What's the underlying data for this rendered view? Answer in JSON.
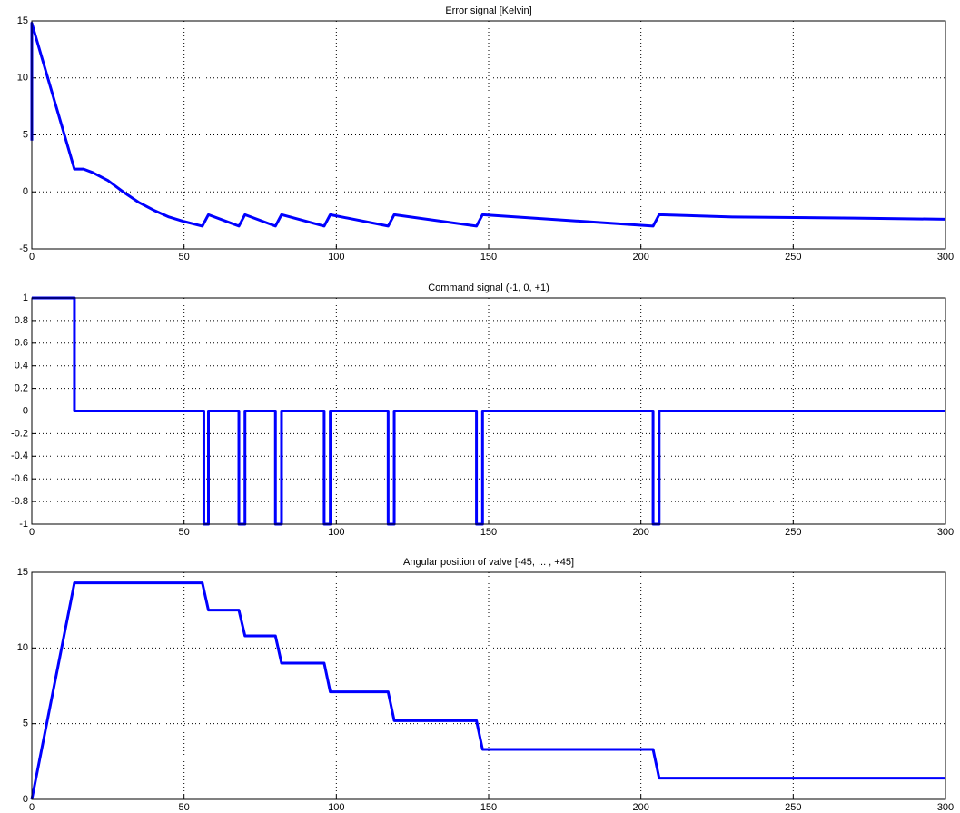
{
  "chart_data": [
    {
      "type": "line",
      "title": "Error signal [Kelvin]",
      "x": [
        0,
        0,
        14,
        17,
        20,
        25,
        30,
        35,
        40,
        45,
        50,
        56,
        58,
        68,
        70,
        80,
        82,
        96,
        98,
        117,
        119,
        146,
        148,
        204,
        206,
        230,
        270,
        300
      ],
      "values": [
        4.5,
        14.8,
        2,
        2,
        1.7,
        1,
        0,
        -0.9,
        -1.6,
        -2.2,
        -2.6,
        -3,
        -2,
        -3,
        -2,
        -3,
        -2,
        -3,
        -2,
        -3,
        -2,
        -3,
        -2,
        -3,
        -2,
        -2.2,
        -2.3,
        -2.4
      ],
      "color": "#0000ff",
      "xlim": [
        0,
        300
      ],
      "ylim": [
        -5,
        15
      ],
      "xticks": [
        0,
        50,
        100,
        150,
        200,
        250,
        300
      ],
      "yticks": [
        -5,
        0,
        5,
        10,
        15
      ],
      "grid": true
    },
    {
      "type": "line",
      "title": "Command signal (-1,  0,  +1)",
      "x": [
        0,
        14,
        14,
        56.5,
        56.5,
        58,
        58,
        68,
        68,
        70,
        70,
        80,
        80,
        82,
        82,
        96,
        96,
        98,
        98,
        117,
        117,
        119,
        119,
        146,
        146,
        148,
        148,
        204,
        204,
        206,
        206,
        300
      ],
      "values": [
        1,
        1,
        0,
        0,
        -1,
        -1,
        0,
        0,
        -1,
        -1,
        0,
        0,
        -1,
        -1,
        0,
        0,
        -1,
        -1,
        0,
        0,
        -1,
        -1,
        0,
        0,
        -1,
        -1,
        0,
        0,
        -1,
        -1,
        0,
        0
      ],
      "color": "#0000ff",
      "xlim": [
        0,
        300
      ],
      "ylim": [
        -1,
        1
      ],
      "xticks": [
        0,
        50,
        100,
        150,
        200,
        250,
        300
      ],
      "yticks": [
        -1,
        -0.8,
        -0.6,
        -0.4,
        -0.2,
        0,
        0.2,
        0.4,
        0.6,
        0.8,
        1
      ],
      "grid": true
    },
    {
      "type": "line",
      "title": "Angular position of valve [-45, ... , +45]",
      "x": [
        0,
        14,
        56,
        58,
        68,
        70,
        80,
        82,
        96,
        98,
        117,
        119,
        146,
        148,
        204,
        206,
        300
      ],
      "values": [
        0,
        14.3,
        14.3,
        12.5,
        12.5,
        10.8,
        10.8,
        9,
        9,
        7.1,
        7.1,
        5.2,
        5.2,
        3.3,
        3.3,
        1.4,
        1.4
      ],
      "color": "#0000ff",
      "xlim": [
        0,
        300
      ],
      "ylim": [
        0,
        15
      ],
      "xticks": [
        0,
        50,
        100,
        150,
        200,
        250,
        300
      ],
      "yticks": [
        0,
        5,
        10,
        15
      ],
      "grid": true
    }
  ]
}
